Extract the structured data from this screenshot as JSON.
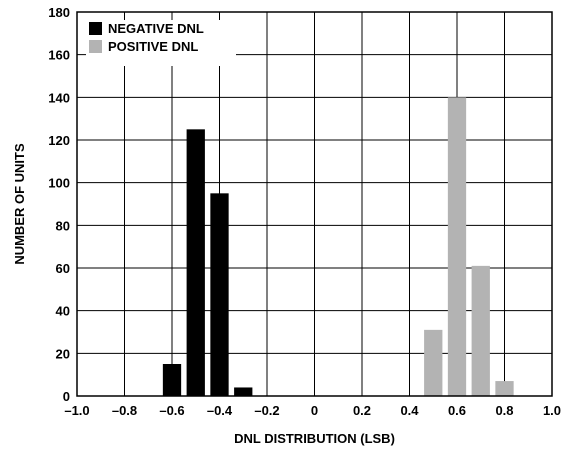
{
  "chart_data": {
    "type": "bar",
    "xlabel": "DNL DISTRIBUTION (LSB)",
    "ylabel": "NUMBER OF UNITS",
    "xlim": [
      -1.0,
      1.0
    ],
    "ylim": [
      0,
      180
    ],
    "x_ticks": [
      "–1.0",
      "–0.8",
      "–0.6",
      "–0.4",
      "–0.2",
      "0",
      "0.2",
      "0.4",
      "0.6",
      "0.8",
      "1.0"
    ],
    "y_ticks": [
      "0",
      "20",
      "40",
      "60",
      "80",
      "100",
      "120",
      "140",
      "160",
      "180"
    ],
    "grid": true,
    "legend_position": "top-left",
    "series": [
      {
        "name": "NEGATIVE DNL",
        "color": "#000000",
        "x": [
          -0.6,
          -0.5,
          -0.4,
          -0.3
        ],
        "values": [
          15,
          125,
          95,
          4
        ]
      },
      {
        "name": "POSITIVE DNL",
        "color": "#b3b3b3",
        "x": [
          0.5,
          0.6,
          0.7,
          0.8
        ],
        "values": [
          31,
          140,
          61,
          7
        ]
      }
    ]
  }
}
